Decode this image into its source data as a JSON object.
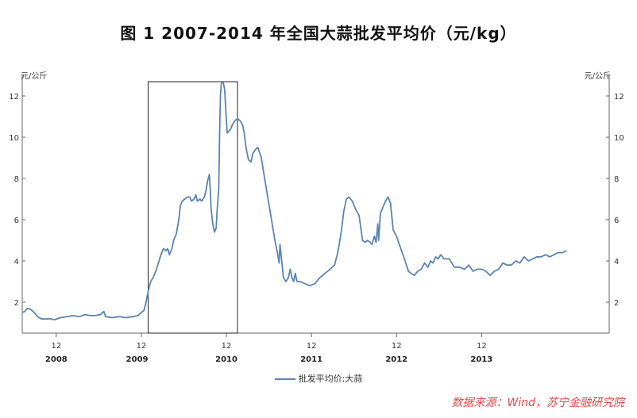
{
  "title": "图 1 2007-2014 年全国大蒜批发平均价（元/kg）",
  "source": "数据来源：Wind，苏宁金融研究院",
  "chart_data": {
    "type": "line",
    "unit_left": "元/公斤",
    "unit_right": "元/公斤",
    "ylim": [
      0.5,
      13
    ],
    "yticks": [
      2,
      4,
      6,
      8,
      10,
      12
    ],
    "xlim": [
      2007.6,
      2014.5
    ],
    "x_month_ticks": [
      {
        "x": 2008.0,
        "label": "12"
      },
      {
        "x": 2009.0,
        "label": "12"
      },
      {
        "x": 2010.0,
        "label": "12"
      },
      {
        "x": 2011.0,
        "label": "12"
      },
      {
        "x": 2012.0,
        "label": "12"
      },
      {
        "x": 2013.0,
        "label": "12"
      }
    ],
    "x_year_labels": [
      {
        "x": 2008.0,
        "label": "2008"
      },
      {
        "x": 2008.95,
        "label": "2009"
      },
      {
        "x": 2010.0,
        "label": "2010"
      },
      {
        "x": 2011.0,
        "label": "2011"
      },
      {
        "x": 2012.0,
        "label": "2012"
      },
      {
        "x": 2013.0,
        "label": "2013"
      }
    ],
    "highlight_box": {
      "x0": 2009.08,
      "x1": 2010.13
    },
    "grid": false,
    "legend": "bottom-center",
    "series": [
      {
        "name": "批发平均价:大蒜",
        "color": "#5b84b1",
        "points": [
          [
            2007.6,
            1.5
          ],
          [
            2007.63,
            1.55
          ],
          [
            2007.66,
            1.7
          ],
          [
            2007.7,
            1.65
          ],
          [
            2007.74,
            1.5
          ],
          [
            2007.78,
            1.3
          ],
          [
            2007.82,
            1.2
          ],
          [
            2007.86,
            1.18
          ],
          [
            2007.92,
            1.2
          ],
          [
            2007.98,
            1.15
          ],
          [
            2008.05,
            1.25
          ],
          [
            2008.12,
            1.3
          ],
          [
            2008.2,
            1.35
          ],
          [
            2008.27,
            1.3
          ],
          [
            2008.34,
            1.4
          ],
          [
            2008.4,
            1.35
          ],
          [
            2008.46,
            1.35
          ],
          [
            2008.52,
            1.4
          ],
          [
            2008.56,
            1.55
          ],
          [
            2008.58,
            1.3
          ],
          [
            2008.66,
            1.25
          ],
          [
            2008.74,
            1.3
          ],
          [
            2008.82,
            1.25
          ],
          [
            2008.9,
            1.3
          ],
          [
            2008.96,
            1.35
          ],
          [
            2009.0,
            1.5
          ],
          [
            2009.03,
            1.6
          ],
          [
            2009.05,
            1.9
          ],
          [
            2009.07,
            2.3
          ],
          [
            2009.09,
            2.7
          ],
          [
            2009.11,
            3.0
          ],
          [
            2009.14,
            3.2
          ],
          [
            2009.17,
            3.5
          ],
          [
            2009.2,
            3.9
          ],
          [
            2009.23,
            4.3
          ],
          [
            2009.26,
            4.6
          ],
          [
            2009.29,
            4.5
          ],
          [
            2009.31,
            4.6
          ],
          [
            2009.33,
            4.3
          ],
          [
            2009.36,
            4.6
          ],
          [
            2009.38,
            5.0
          ],
          [
            2009.41,
            5.3
          ],
          [
            2009.44,
            6.0
          ],
          [
            2009.46,
            6.7
          ],
          [
            2009.48,
            6.9
          ],
          [
            2009.51,
            7.0
          ],
          [
            2009.54,
            7.1
          ],
          [
            2009.57,
            7.1
          ],
          [
            2009.59,
            6.9
          ],
          [
            2009.62,
            7.0
          ],
          [
            2009.64,
            7.2
          ],
          [
            2009.66,
            6.9
          ],
          [
            2009.69,
            7.0
          ],
          [
            2009.71,
            6.9
          ],
          [
            2009.74,
            7.1
          ],
          [
            2009.76,
            7.4
          ],
          [
            2009.78,
            7.9
          ],
          [
            2009.8,
            8.2
          ],
          [
            2009.81,
            7.5
          ],
          [
            2009.82,
            6.5
          ],
          [
            2009.84,
            5.8
          ],
          [
            2009.86,
            5.4
          ],
          [
            2009.88,
            5.6
          ],
          [
            2009.89,
            6.4
          ],
          [
            2009.91,
            7.5
          ],
          [
            2009.92,
            10.2
          ],
          [
            2009.93,
            12.0
          ],
          [
            2009.94,
            12.6
          ],
          [
            2009.96,
            12.7
          ],
          [
            2009.98,
            12.3
          ],
          [
            2010.0,
            10.8
          ],
          [
            2010.01,
            10.2
          ],
          [
            2010.03,
            10.3
          ],
          [
            2010.05,
            10.4
          ],
          [
            2010.07,
            10.6
          ],
          [
            2010.1,
            10.8
          ],
          [
            2010.13,
            10.9
          ],
          [
            2010.16,
            10.8
          ],
          [
            2010.19,
            10.6
          ],
          [
            2010.21,
            10.2
          ],
          [
            2010.23,
            9.5
          ],
          [
            2010.26,
            8.9
          ],
          [
            2010.29,
            8.8
          ],
          [
            2010.31,
            9.2
          ],
          [
            2010.34,
            9.4
          ],
          [
            2010.37,
            9.5
          ],
          [
            2010.41,
            9.0
          ],
          [
            2010.45,
            8.0
          ],
          [
            2010.49,
            7.0
          ],
          [
            2010.53,
            6.0
          ],
          [
            2010.57,
            5.0
          ],
          [
            2010.6,
            4.4
          ],
          [
            2010.62,
            3.9
          ],
          [
            2010.63,
            4.8
          ],
          [
            2010.65,
            4.0
          ],
          [
            2010.67,
            3.2
          ],
          [
            2010.7,
            3.0
          ],
          [
            2010.73,
            3.2
          ],
          [
            2010.75,
            3.6
          ],
          [
            2010.77,
            3.2
          ],
          [
            2010.79,
            3.0
          ],
          [
            2010.81,
            3.4
          ],
          [
            2010.83,
            3.0
          ],
          [
            2010.87,
            3.0
          ],
          [
            2010.92,
            2.9
          ],
          [
            2010.98,
            2.8
          ],
          [
            2011.04,
            2.9
          ],
          [
            2011.1,
            3.2
          ],
          [
            2011.16,
            3.4
          ],
          [
            2011.22,
            3.6
          ],
          [
            2011.27,
            3.8
          ],
          [
            2011.31,
            4.4
          ],
          [
            2011.35,
            5.4
          ],
          [
            2011.38,
            6.4
          ],
          [
            2011.41,
            7.0
          ],
          [
            2011.44,
            7.1
          ],
          [
            2011.48,
            6.9
          ],
          [
            2011.52,
            6.5
          ],
          [
            2011.56,
            6.2
          ],
          [
            2011.58,
            5.6
          ],
          [
            2011.6,
            5.0
          ],
          [
            2011.63,
            4.9
          ],
          [
            2011.66,
            5.0
          ],
          [
            2011.69,
            4.9
          ],
          [
            2011.71,
            4.8
          ],
          [
            2011.74,
            5.2
          ],
          [
            2011.76,
            4.9
          ],
          [
            2011.78,
            5.8
          ],
          [
            2011.79,
            5.0
          ],
          [
            2011.81,
            6.3
          ],
          [
            2011.84,
            6.6
          ],
          [
            2011.87,
            6.9
          ],
          [
            2011.9,
            7.1
          ],
          [
            2011.93,
            6.8
          ],
          [
            2011.96,
            5.5
          ],
          [
            2012.0,
            5.2
          ],
          [
            2012.05,
            4.6
          ],
          [
            2012.1,
            4.0
          ],
          [
            2012.14,
            3.5
          ],
          [
            2012.17,
            3.4
          ],
          [
            2012.21,
            3.3
          ],
          [
            2012.25,
            3.5
          ],
          [
            2012.29,
            3.6
          ],
          [
            2012.33,
            3.9
          ],
          [
            2012.37,
            3.7
          ],
          [
            2012.4,
            4.0
          ],
          [
            2012.43,
            3.9
          ],
          [
            2012.46,
            4.2
          ],
          [
            2012.49,
            4.1
          ],
          [
            2012.52,
            4.3
          ],
          [
            2012.56,
            4.1
          ],
          [
            2012.62,
            4.1
          ],
          [
            2012.68,
            3.7
          ],
          [
            2012.74,
            3.7
          ],
          [
            2012.8,
            3.6
          ],
          [
            2012.85,
            3.8
          ],
          [
            2012.9,
            3.5
          ],
          [
            2012.95,
            3.6
          ],
          [
            2013.0,
            3.6
          ],
          [
            2013.05,
            3.5
          ],
          [
            2013.1,
            3.3
          ],
          [
            2013.15,
            3.5
          ],
          [
            2013.2,
            3.6
          ],
          [
            2013.25,
            3.9
          ],
          [
            2013.3,
            3.8
          ],
          [
            2013.35,
            3.8
          ],
          [
            2013.4,
            4.0
          ],
          [
            2013.45,
            3.9
          ],
          [
            2013.5,
            4.2
          ],
          [
            2013.55,
            4.0
          ],
          [
            2013.6,
            4.1
          ],
          [
            2013.65,
            4.2
          ],
          [
            2013.7,
            4.2
          ],
          [
            2013.75,
            4.3
          ],
          [
            2013.8,
            4.2
          ],
          [
            2013.85,
            4.3
          ],
          [
            2013.9,
            4.4
          ],
          [
            2013.95,
            4.4
          ],
          [
            2014.0,
            4.5
          ]
        ]
      }
    ]
  }
}
